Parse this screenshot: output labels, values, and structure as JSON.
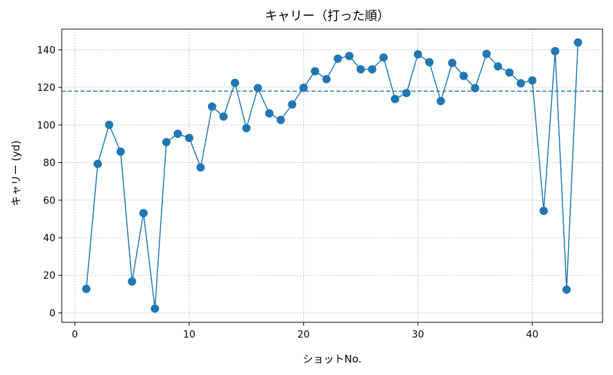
{
  "chart_data": {
    "type": "line",
    "title": "キャリー（打った順）",
    "xlabel": "ショットNo.",
    "ylabel": "キャリー (yd)",
    "xlim": [
      -1.15,
      46.15
    ],
    "ylim": [
      -5,
      151
    ],
    "xticks": [
      0,
      10,
      20,
      30,
      40
    ],
    "yticks": [
      0,
      20,
      40,
      60,
      80,
      100,
      120,
      140
    ],
    "grid": true,
    "grid_style": "dotted",
    "legend": false,
    "series_color": "#1f77b4",
    "reference_line": {
      "orientation": "horizontal",
      "y": 118,
      "style": "dashed",
      "color": "#1f77b4"
    },
    "x": [
      1,
      2,
      3,
      4,
      5,
      6,
      7,
      8,
      9,
      10,
      11,
      12,
      13,
      14,
      15,
      16,
      17,
      18,
      19,
      20,
      21,
      22,
      23,
      24,
      25,
      26,
      27,
      28,
      29,
      30,
      31,
      32,
      33,
      34,
      35,
      36,
      37,
      38,
      39,
      40,
      41,
      42,
      43,
      44
    ],
    "y": [
      12.8,
      79.3,
      100.1,
      85.8,
      16.7,
      53.1,
      2.3,
      90.9,
      95.3,
      93.1,
      77.4,
      109.8,
      104.5,
      122.4,
      98.3,
      119.6,
      106.2,
      102.7,
      110.9,
      119.8,
      128.6,
      124.4,
      135.3,
      136.7,
      129.6,
      129.6,
      135.9,
      113.8,
      117.0,
      137.6,
      133.4,
      112.7,
      133.0,
      126.1,
      119.6,
      137.8,
      131.2,
      127.9,
      122.2,
      123.7,
      54.3,
      139.3,
      12.4,
      143.9
    ]
  }
}
